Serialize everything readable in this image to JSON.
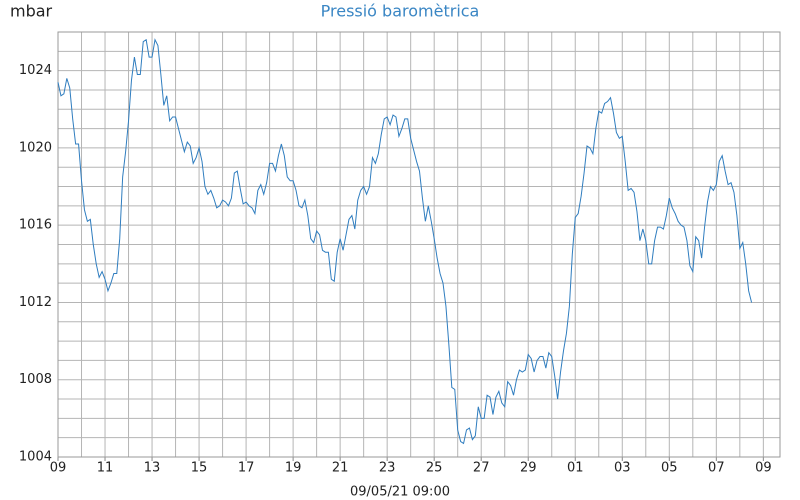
{
  "chart_data": {
    "type": "line",
    "title": "Pressió baromètrica",
    "y_label": "mbar",
    "x_label": "09/05/21 09:00",
    "xlim": [
      0,
      737
    ],
    "ylim": [
      1004,
      1026
    ],
    "grid": true,
    "xticks": [
      {
        "value": 0,
        "label": "09"
      },
      {
        "value": 48,
        "label": "11"
      },
      {
        "value": 96,
        "label": "13"
      },
      {
        "value": 144,
        "label": "15"
      },
      {
        "value": 192,
        "label": "17"
      },
      {
        "value": 240,
        "label": "19"
      },
      {
        "value": 288,
        "label": "21"
      },
      {
        "value": 336,
        "label": "23"
      },
      {
        "value": 384,
        "label": "25"
      },
      {
        "value": 432,
        "label": "27"
      },
      {
        "value": 480,
        "label": "29"
      },
      {
        "value": 528,
        "label": "01"
      },
      {
        "value": 576,
        "label": "03"
      },
      {
        "value": 624,
        "label": "05"
      },
      {
        "value": 672,
        "label": "07"
      },
      {
        "value": 720,
        "label": "09"
      }
    ],
    "minor_xticks": [
      24,
      72,
      120,
      168,
      216,
      264,
      312,
      360,
      408,
      456,
      504,
      552,
      600,
      648,
      696
    ],
    "yticks": [
      1004,
      1008,
      1012,
      1016,
      1020,
      1024
    ],
    "minor_yticks": [
      1005,
      1006,
      1007,
      1009,
      1010,
      1011,
      1013,
      1014,
      1015,
      1017,
      1018,
      1019,
      1021,
      1022,
      1023,
      1025
    ],
    "series": [
      {
        "name": "mbar",
        "color": "#2f7dbf",
        "x": [
          0,
          3,
          6,
          9,
          12,
          15,
          18,
          21,
          24,
          27,
          30,
          33,
          36,
          39,
          42,
          45,
          48,
          51,
          54,
          57,
          60,
          63,
          66,
          69,
          72,
          75,
          78,
          81,
          84,
          87,
          90,
          93,
          96,
          99,
          102,
          105,
          108,
          111,
          114,
          117,
          120,
          123,
          126,
          129,
          132,
          135,
          138,
          141,
          144,
          147,
          150,
          153,
          156,
          159,
          162,
          165,
          168,
          171,
          174,
          177,
          180,
          183,
          186,
          189,
          192,
          195,
          198,
          201,
          204,
          207,
          210,
          213,
          216,
          219,
          222,
          225,
          228,
          231,
          234,
          237,
          240,
          243,
          246,
          249,
          252,
          255,
          258,
          261,
          264,
          267,
          270,
          273,
          276,
          279,
          282,
          285,
          288,
          291,
          294,
          297,
          300,
          303,
          306,
          309,
          312,
          315,
          318,
          321,
          324,
          327,
          330,
          333,
          336,
          339,
          342,
          345,
          348,
          351,
          354,
          357,
          360,
          363,
          366,
          369,
          372,
          375,
          378,
          381,
          384,
          387,
          390,
          393,
          396,
          399,
          402,
          405,
          408,
          411,
          414,
          417,
          420,
          423,
          426,
          429,
          432,
          435,
          438,
          441,
          444,
          447,
          450,
          453,
          456,
          459,
          462,
          465,
          468,
          471,
          474,
          477,
          480,
          483,
          486,
          489,
          492,
          495,
          498,
          501,
          504,
          507,
          510,
          513,
          516,
          519,
          522,
          525,
          528,
          531,
          534,
          537,
          540,
          543,
          546,
          549,
          552,
          555,
          558,
          561,
          564,
          567,
          570,
          573,
          576,
          579,
          582,
          585,
          588,
          591,
          594,
          597,
          600,
          603,
          606,
          609,
          612,
          615,
          618,
          621,
          624,
          627,
          630,
          633,
          636,
          639,
          642,
          645,
          648,
          651,
          654,
          657,
          660,
          663,
          666,
          669,
          672,
          675,
          678,
          681,
          684,
          687,
          690,
          693,
          696,
          699,
          702,
          705,
          708
        ],
        "values": [
          1023.4,
          1022.7,
          1022.8,
          1023.6,
          1023.1,
          1021.5,
          1020.2,
          1020.2,
          1018.3,
          1016.8,
          1016.2,
          1016.3,
          1015.0,
          1014.0,
          1013.3,
          1013.6,
          1013.2,
          1012.6,
          1013.0,
          1013.5,
          1013.5,
          1015.3,
          1018.5,
          1019.8,
          1021.4,
          1023.5,
          1024.7,
          1023.8,
          1023.8,
          1025.5,
          1025.6,
          1024.7,
          1024.7,
          1025.6,
          1025.3,
          1023.8,
          1022.2,
          1022.7,
          1021.4,
          1021.6,
          1021.6,
          1021.0,
          1020.4,
          1019.8,
          1020.3,
          1020.1,
          1019.2,
          1019.5,
          1020.0,
          1019.3,
          1018.0,
          1017.6,
          1017.8,
          1017.4,
          1016.9,
          1017.0,
          1017.3,
          1017.2,
          1017.0,
          1017.4,
          1018.7,
          1018.8,
          1017.9,
          1017.1,
          1017.2,
          1017.0,
          1016.9,
          1016.6,
          1017.8,
          1018.1,
          1017.6,
          1018.2,
          1019.2,
          1019.2,
          1018.8,
          1019.6,
          1020.2,
          1019.6,
          1018.5,
          1018.3,
          1018.3,
          1017.8,
          1017.0,
          1016.9,
          1017.3,
          1016.5,
          1015.3,
          1015.1,
          1015.7,
          1015.5,
          1014.7,
          1014.6,
          1014.6,
          1013.2,
          1013.1,
          1014.6,
          1015.3,
          1014.7,
          1015.5,
          1016.3,
          1016.5,
          1015.8,
          1017.3,
          1017.8,
          1018.0,
          1017.6,
          1018.0,
          1019.5,
          1019.2,
          1019.7,
          1020.7,
          1021.5,
          1021.6,
          1021.2,
          1021.7,
          1021.6,
          1020.6,
          1021.0,
          1021.5,
          1021.5,
          1020.5,
          1019.9,
          1019.3,
          1018.8,
          1017.4,
          1016.2,
          1017.0,
          1016.2,
          1015.3,
          1014.3,
          1013.5,
          1013.0,
          1011.8,
          1009.8,
          1007.6,
          1007.5,
          1005.4,
          1004.8,
          1004.7,
          1005.4,
          1005.5,
          1004.9,
          1005.1,
          1006.6,
          1006.0,
          1006.0,
          1007.2,
          1007.1,
          1006.2,
          1007.1,
          1007.4,
          1006.8,
          1006.6,
          1007.9,
          1007.7,
          1007.2,
          1008.0,
          1008.5,
          1008.4,
          1008.5,
          1009.3,
          1009.1,
          1008.4,
          1009.0,
          1009.2,
          1009.2,
          1008.6,
          1009.4,
          1009.2,
          1008.2,
          1007.0,
          1008.4,
          1009.5,
          1010.4,
          1011.8,
          1014.5,
          1016.4,
          1016.6,
          1017.5,
          1018.7,
          1020.1,
          1020.0,
          1019.7,
          1021.0,
          1021.9,
          1021.8,
          1022.3,
          1022.4,
          1022.6,
          1021.8,
          1020.8,
          1020.5,
          1020.6,
          1019.3,
          1017.8,
          1017.9,
          1017.7,
          1016.7,
          1015.2,
          1015.8,
          1015.2,
          1014.0,
          1014.0,
          1015.2,
          1015.9,
          1015.9,
          1015.8,
          1016.5,
          1017.4,
          1016.9,
          1016.6,
          1016.2,
          1016.0,
          1015.9,
          1015.2,
          1013.9,
          1013.6,
          1015.4,
          1015.2,
          1014.3,
          1015.9,
          1017.2,
          1018.0,
          1017.8,
          1018.1,
          1019.3,
          1019.6,
          1018.8,
          1018.1,
          1018.2,
          1017.7,
          1016.5,
          1014.8,
          1015.1,
          1014.0,
          1012.6,
          1012.0
        ]
      }
    ]
  }
}
